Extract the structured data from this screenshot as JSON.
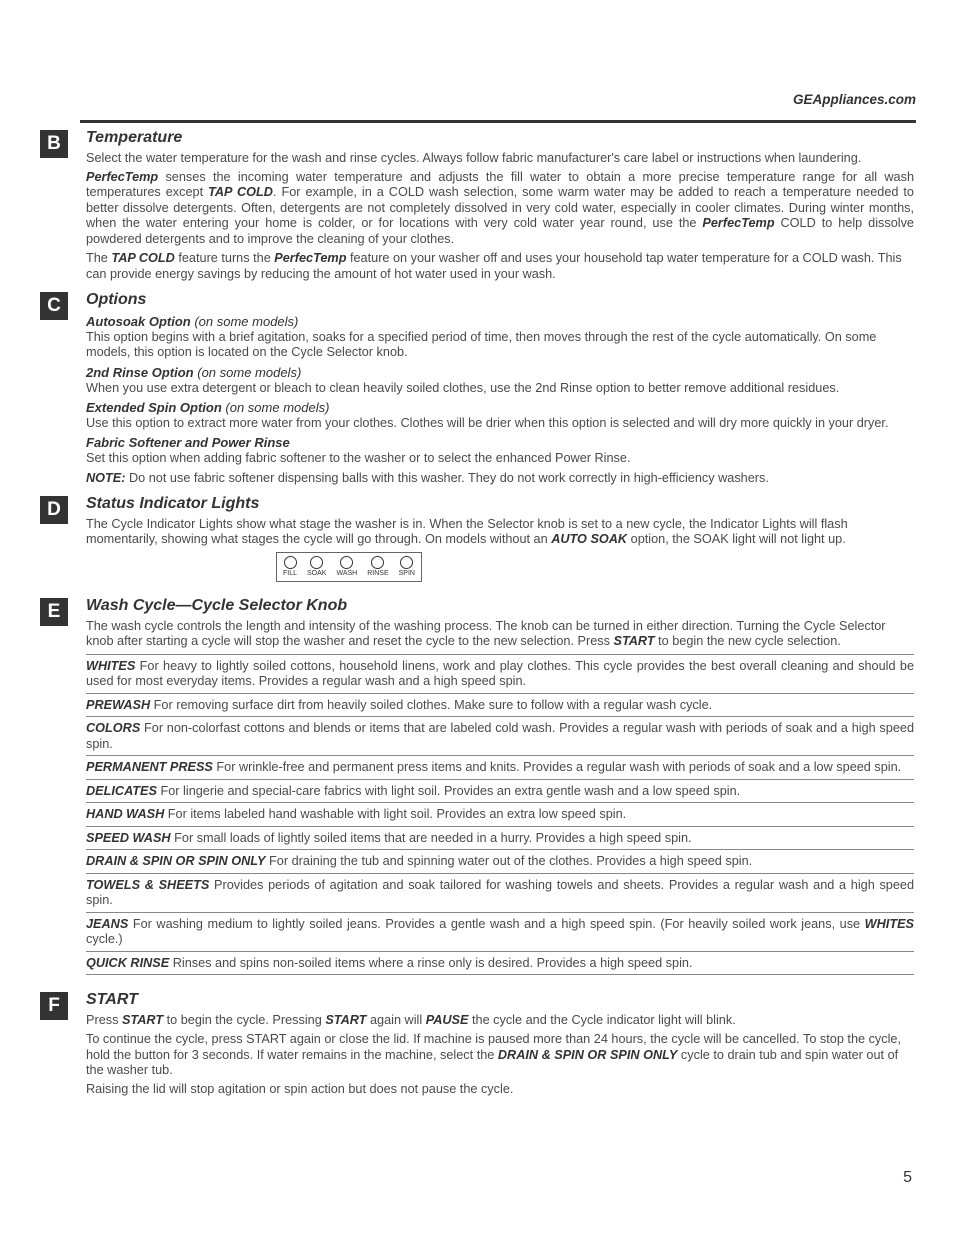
{
  "header": {
    "url": "GEAppliances.com"
  },
  "pageNumber": "5",
  "lights": [
    "FILL",
    "SOAK",
    "WASH",
    "RINSE",
    "SPIN"
  ],
  "B": {
    "letter": "B",
    "title": "Temperature",
    "p1": "Select the water temperature for the wash and rinse cycles. Always follow fabric manufacturer's care label or instructions when laundering.",
    "p2a": "PerfecTemp",
    "p2b": " senses the incoming water temperature and adjusts the fill water to obtain a more precise temperature range for all wash temperatures except ",
    "p2c": "TAP COLD",
    "p2d": ". For example, in a COLD wash selection, some warm water may be added to reach a temperature needed to better dissolve detergents. Often, detergents are not completely dissolved in very cold water, especially in cooler climates. During winter months, when the water entering your home is colder, or for locations with very cold water year round, use the ",
    "p2e": "PerfecTemp",
    "p2f": " COLD to help dissolve powdered detergents and to improve the cleaning of your clothes.",
    "p3a": "The ",
    "p3b": "TAP COLD",
    "p3c": " feature turns the ",
    "p3d": "PerfecTemp",
    "p3e": " feature on your washer off and uses your household tap water temperature for a COLD wash. This can provide energy savings by reducing the amount of hot water used in your wash."
  },
  "C": {
    "letter": "C",
    "title": "Options",
    "s1h": "Autosoak Option",
    "s1n": " (on some models)",
    "s1p": "This option begins with a brief agitation, soaks for a specified period of time, then moves through the rest of the cycle automatically. On some models, this option is located on the Cycle Selector knob.",
    "s2h": "2nd Rinse Option",
    "s2n": " (on some models)",
    "s2p": "When you use extra detergent or bleach to clean heavily soiled clothes, use the 2nd Rinse option to better remove additional residues.",
    "s3h": "Extended Spin Option",
    "s3n": " (on some models)",
    "s3p": "Use this option to extract more water from your clothes. Clothes will be drier when this option is selected and will dry more quickly in your dryer.",
    "s4h": "Fabric Softener and Power Rinse",
    "s4p": "Set this option when adding fabric softener to the washer or to select the enhanced Power Rinse.",
    "noteL": "NOTE:",
    "noteT": " Do not use fabric softener dispensing balls with this washer. They do not work correctly in high-efficiency washers."
  },
  "D": {
    "letter": "D",
    "title": "Status Indicator Lights",
    "p1a": "The Cycle Indicator Lights show what stage the washer is in. When the Selector knob is set to a new cycle, the Indicator Lights will flash momentarily, showing what stages the cycle will go through. On models without an ",
    "p1b": "AUTO SOAK",
    "p1c": " option, the SOAK light will not light up."
  },
  "E": {
    "letter": "E",
    "title": "Wash Cycle—Cycle Selector Knob",
    "introA": "The wash cycle controls the length and intensity of the washing process. The knob can be turned in either direction. Turning the Cycle Selector knob after starting a cycle will stop the washer and reset the cycle to the new selection. Press ",
    "introB": "START",
    "introC": " to begin the new cycle selection.",
    "rows": [
      {
        "l": "WHITES",
        "t": "  For heavy to lightly soiled cottons, household linens, work and play clothes. This cycle provides the best overall cleaning and should be used for most everyday items. Provides a regular wash and a high speed spin."
      },
      {
        "l": "PREWASH",
        "t": "  For removing surface dirt from heavily soiled clothes. Make sure to follow with a regular wash cycle."
      },
      {
        "l": "COLORS",
        "t": "  For non-colorfast cottons and blends or items that are labeled cold wash. Provides a regular wash with periods of soak and a high speed spin."
      },
      {
        "l": "PERMANENT PRESS",
        "t": "  For wrinkle-free and permanent press items and knits. Provides a regular wash with periods of soak and a low speed spin."
      },
      {
        "l": "DELICATES",
        "t": "  For lingerie and special-care fabrics with light soil. Provides an extra gentle wash and a low speed spin."
      },
      {
        "l": "HAND WASH",
        "t": "  For items labeled hand washable with light soil. Provides an extra low speed spin."
      },
      {
        "l": "SPEED WASH",
        "t": "  For small loads of lightly soiled items that are needed in a hurry. Provides a high speed spin."
      },
      {
        "l": "DRAIN & SPIN OR SPIN ONLY",
        "t": "  For draining the tub and spinning water out of the clothes. Provides a high speed spin."
      },
      {
        "l": "TOWELS & SHEETS",
        "t": "  Provides periods of agitation and soak tailored for washing towels and sheets. Provides a regular wash and a high speed spin."
      }
    ],
    "jeansL": "JEANS",
    "jeansA": "  For washing medium to lightly soiled jeans. Provides a gentle wash and a high speed spin. (For heavily soiled work jeans, use ",
    "jeansB": "WHITES",
    "jeansC": " cycle.)",
    "qrL": "QUICK RINSE",
    "qrT": "  Rinses and spins non-soiled items where a rinse only is desired.  Provides a high speed spin."
  },
  "F": {
    "letter": "F",
    "title": "START",
    "p1a": "Press ",
    "p1b": "START",
    "p1c": " to begin the cycle. Pressing ",
    "p1d": "START",
    "p1e": " again will ",
    "p1f": "PAUSE",
    "p1g": " the cycle and the Cycle indicator light will blink.",
    "p2a": "To continue the cycle, press START again or close the lid. If machine is paused more than 24 hours, the cycle will be cancelled. To stop the cycle, hold the button for 3 seconds. If water remains in the machine, select the ",
    "p2b": "DRAIN & SPIN OR SPIN ONLY",
    "p2c": " cycle to drain tub and spin water out of the washer tub.",
    "p3": "Raising the lid will stop agitation or spin action but does not pause the cycle."
  }
}
